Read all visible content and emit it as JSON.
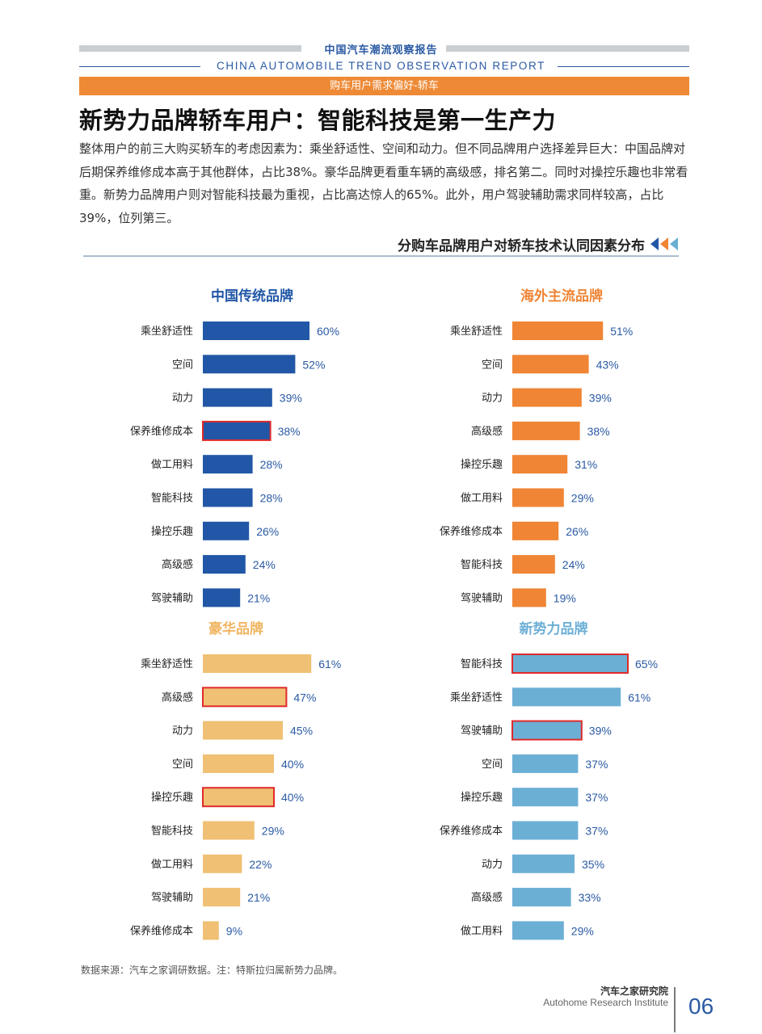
{
  "header": {
    "report_cn": "中国汽车潮流观察报告",
    "report_en": "CHINA AUTOMOBILE TREND OBSERVATION REPORT",
    "section_tag": "购车用户需求偏好-轿车"
  },
  "title": "新势力品牌轿车用户：智能科技是第一生产力",
  "intro": "整体用户的前三大购买轿车的考虑因素为：乘坐舒适性、空间和动力。但不同品牌用户选择差异巨大：中国品牌对后期保养维修成本高于其他群体，占比38%。豪华品牌更看重车辆的高级感，排名第二。同时对操控乐趣也非常看重。新势力品牌用户则对智能科技最为重视，占比高达惊人的65%。此外，用户驾驶辅助需求同样较高，占比39%，位列第三。",
  "section_title": "分购车品牌用户对轿车技术认同因素分布",
  "footer": {
    "source": "数据来源：汽车之家调研数据。注：特斯拉归属新势力品牌。",
    "brand_cn": "汽车之家研究院",
    "brand_en": "Autohome Research Institute",
    "page": "06"
  },
  "colors": {
    "blue": "#2157a6",
    "orange": "#ef8535",
    "yellow": "#f0c074",
    "lightblue": "#6cafd5",
    "highlight": "#e02a2a"
  },
  "chart_data": [
    {
      "type": "bar",
      "orientation": "horizontal",
      "title": "中国传统品牌",
      "categories": [
        "乘坐舒适性",
        "空间",
        "动力",
        "保养维修成本",
        "做工用料",
        "智能科技",
        "操控乐趣",
        "高级感",
        "驾驶辅助"
      ],
      "values": [
        60,
        52,
        39,
        38,
        28,
        28,
        26,
        24,
        21
      ],
      "labels": [
        "60%",
        "52%",
        "39%",
        "38%",
        "28%",
        "28%",
        "26%",
        "24%",
        "21%"
      ],
      "highlighted": [
        "保养维修成本"
      ],
      "color": "#2157a6",
      "title_color": "#2157a6"
    },
    {
      "type": "bar",
      "orientation": "horizontal",
      "title": "海外主流品牌",
      "categories": [
        "乘坐舒适性",
        "空间",
        "动力",
        "高级感",
        "操控乐趣",
        "做工用料",
        "保养维修成本",
        "智能科技",
        "驾驶辅助"
      ],
      "values": [
        51,
        43,
        39,
        38,
        31,
        29,
        26,
        24,
        19
      ],
      "labels": [
        "51%",
        "43%",
        "39%",
        "38%",
        "31%",
        "29%",
        "26%",
        "24%",
        "19%"
      ],
      "highlighted": [],
      "color": "#ef8535",
      "title_color": "#ef8535"
    },
    {
      "type": "bar",
      "orientation": "horizontal",
      "title": "豪华品牌",
      "categories": [
        "乘坐舒适性",
        "高级感",
        "动力",
        "空间",
        "操控乐趣",
        "智能科技",
        "做工用料",
        "驾驶辅助",
        "保养维修成本"
      ],
      "values": [
        61,
        47,
        45,
        40,
        40,
        29,
        22,
        21,
        9
      ],
      "labels": [
        "61%",
        "47%",
        "45%",
        "40%",
        "40%",
        "29%",
        "22%",
        "21%",
        "9%"
      ],
      "highlighted": [
        "高级感",
        "操控乐趣"
      ],
      "color": "#f0c074",
      "title_color": "#f0b560"
    },
    {
      "type": "bar",
      "orientation": "horizontal",
      "title": "新势力品牌",
      "categories": [
        "智能科技",
        "乘坐舒适性",
        "驾驶辅助",
        "空间",
        "操控乐趣",
        "保养维修成本",
        "动力",
        "高级感",
        "做工用料"
      ],
      "values": [
        65,
        61,
        39,
        37,
        37,
        37,
        35,
        33,
        29
      ],
      "labels": [
        "65%",
        "61%",
        "39%",
        "37%",
        "37%",
        "37%",
        "35%",
        "33%",
        "29%"
      ],
      "highlighted": [
        "智能科技",
        "驾驶辅助"
      ],
      "color": "#6cafd5",
      "title_color": "#6cafd5"
    }
  ]
}
